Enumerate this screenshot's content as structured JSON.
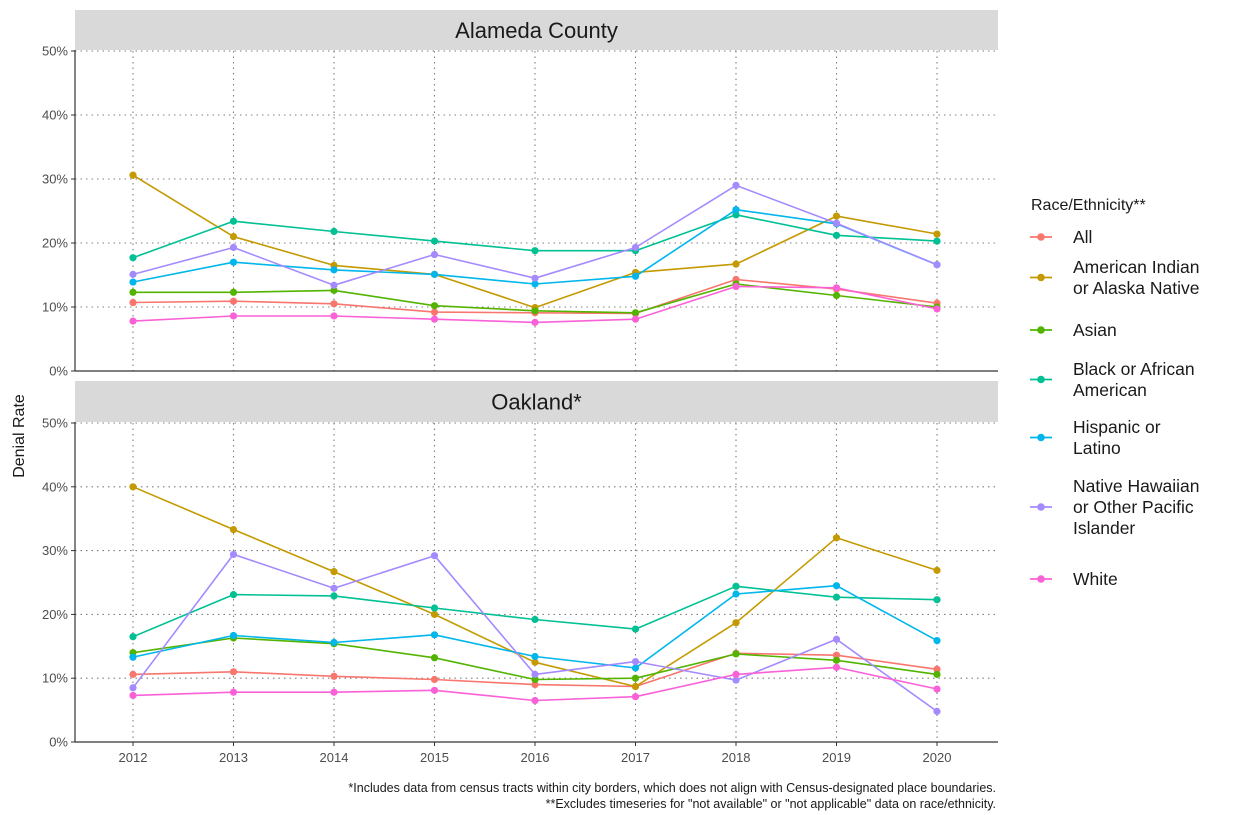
{
  "chart_data": {
    "type": "line",
    "ylabel": "Denial Rate",
    "xlabel": "",
    "x": [
      2012,
      2013,
      2014,
      2015,
      2016,
      2017,
      2018,
      2019,
      2020
    ],
    "ylim": [
      0,
      50
    ],
    "y_ticks": [
      0,
      10,
      20,
      30,
      40,
      50
    ],
    "y_tick_labels": [
      "0%",
      "10%",
      "20%",
      "30%",
      "40%",
      "50%"
    ],
    "grid": true,
    "legend": {
      "title": "Race/Ethnicity**",
      "placement": "right",
      "entries": [
        [
          "All"
        ],
        [
          "American Indian",
          "or Alaska Native"
        ],
        [
          "Asian"
        ],
        [
          "Black or African",
          "American"
        ],
        [
          "Hispanic or",
          "Latino"
        ],
        [
          "Native Hawaiian",
          "or Other Pacific",
          "Islander"
        ],
        [
          "White"
        ]
      ]
    },
    "series_colors": [
      "#F8766D",
      "#C49A00",
      "#53B400",
      "#00C094",
      "#00B6EB",
      "#A58AFF",
      "#FB61D7"
    ],
    "panels": [
      {
        "title": "Alameda County",
        "series": [
          {
            "name": "All",
            "values": [
              10.7,
              10.9,
              10.5,
              9.2,
              9.1,
              9.0,
              14.3,
              12.8,
              10.6
            ]
          },
          {
            "name": "American Indian or Alaska Native",
            "values": [
              30.6,
              21.0,
              16.5,
              15.1,
              9.9,
              15.4,
              16.7,
              24.2,
              21.4
            ]
          },
          {
            "name": "Asian",
            "values": [
              12.3,
              12.3,
              12.6,
              10.2,
              9.4,
              9.1,
              13.6,
              11.8,
              10.0
            ]
          },
          {
            "name": "Black or African American",
            "values": [
              17.7,
              23.4,
              21.8,
              20.3,
              18.8,
              18.8,
              24.4,
              21.2,
              20.3
            ]
          },
          {
            "name": "Hispanic or Latino",
            "values": [
              13.9,
              17.0,
              15.8,
              15.1,
              13.6,
              14.8,
              25.2,
              23.0,
              16.6
            ]
          },
          {
            "name": "Native Hawaiian or Other Pacific Islander",
            "values": [
              15.1,
              19.3,
              13.4,
              18.2,
              14.5,
              19.3,
              29.0,
              23.1,
              16.6
            ]
          },
          {
            "name": "White",
            "values": [
              7.8,
              8.6,
              8.6,
              8.1,
              7.6,
              8.1,
              13.2,
              13.0,
              9.7
            ]
          }
        ]
      },
      {
        "title": "Oakland*",
        "series": [
          {
            "name": "All",
            "values": [
              10.6,
              11.0,
              10.3,
              9.8,
              9.0,
              8.7,
              13.9,
              13.6,
              11.4
            ]
          },
          {
            "name": "American Indian or Alaska Native",
            "values": [
              40.0,
              33.3,
              26.7,
              20.0,
              12.5,
              8.7,
              18.7,
              32.0,
              26.9
            ]
          },
          {
            "name": "Asian",
            "values": [
              14.0,
              16.3,
              15.4,
              13.2,
              9.8,
              10.0,
              13.8,
              12.8,
              10.6
            ]
          },
          {
            "name": "Black or African American",
            "values": [
              16.5,
              23.1,
              22.9,
              21.0,
              19.2,
              17.7,
              24.4,
              22.7,
              22.3
            ]
          },
          {
            "name": "Hispanic or Latino",
            "values": [
              13.3,
              16.7,
              15.6,
              16.8,
              13.4,
              11.6,
              23.2,
              24.5,
              15.9
            ]
          },
          {
            "name": "Native Hawaiian or Other Pacific Islander",
            "values": [
              8.5,
              29.4,
              24.1,
              29.2,
              10.6,
              12.6,
              9.7,
              16.1,
              4.8
            ]
          },
          {
            "name": "White",
            "values": [
              7.3,
              7.8,
              7.8,
              8.1,
              6.5,
              7.1,
              10.6,
              11.7,
              8.3
            ]
          }
        ]
      }
    ],
    "caption": [
      "*Includes data from census tracts within city borders, which does not align with Census-designated place boundaries.",
      "**Excludes timeseries for \"not available\" or \"not applicable\" data on race/ethnicity."
    ]
  }
}
